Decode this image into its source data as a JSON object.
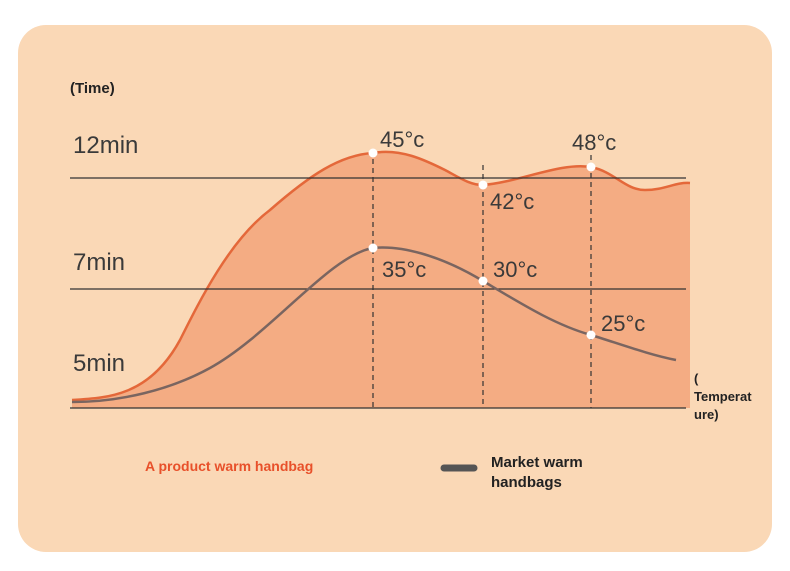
{
  "y_axis_title": "(Time)",
  "y_labels": [
    "12min",
    "7min",
    "5min"
  ],
  "x_axis_title": [
    "(",
    "Temperat",
    "ure)"
  ],
  "point_labels": {
    "product": [
      "45°c",
      "42°c",
      "48°c"
    ],
    "market": [
      "35°c",
      "30°c",
      "25°c"
    ]
  },
  "legend": {
    "product": "A product warm handbag",
    "market": [
      "Market warm",
      "handbags"
    ]
  }
}
